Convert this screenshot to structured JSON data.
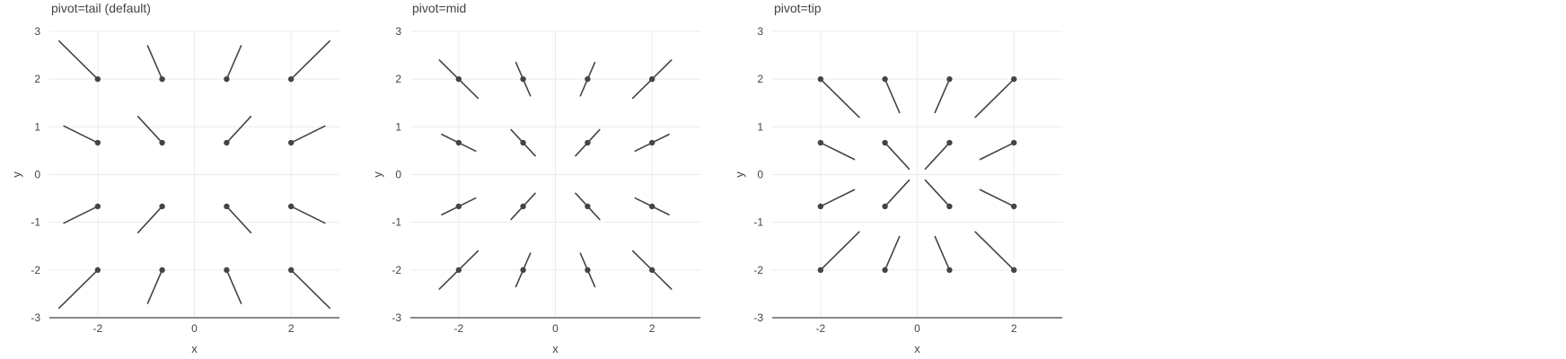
{
  "chart_data": [
    {
      "type": "quiver",
      "title": "pivot=tail (default)",
      "pivot": "tail",
      "xlabel": "x",
      "ylabel": "y",
      "xlim": [
        -3,
        3
      ],
      "ylim": [
        -3,
        3
      ],
      "xticks": [
        "-2",
        "0",
        "2"
      ],
      "yticks": [
        "3",
        "2",
        "1",
        "0",
        "-1",
        "-2",
        "-3"
      ],
      "grid": true,
      "points": [
        {
          "x": -2,
          "y": 2,
          "u": -0.8,
          "v": 0.8
        },
        {
          "x": -0.667,
          "y": 2,
          "u": -0.3,
          "v": 0.7
        },
        {
          "x": 0.667,
          "y": 2,
          "u": 0.3,
          "v": 0.7
        },
        {
          "x": 2,
          "y": 2,
          "u": 0.8,
          "v": 0.8
        },
        {
          "x": -2,
          "y": 0.667,
          "u": -0.7,
          "v": 0.35
        },
        {
          "x": -0.667,
          "y": 0.667,
          "u": -0.5,
          "v": 0.55
        },
        {
          "x": 0.667,
          "y": 0.667,
          "u": 0.5,
          "v": 0.55
        },
        {
          "x": 2,
          "y": 0.667,
          "u": 0.7,
          "v": 0.35
        },
        {
          "x": -2,
          "y": -0.667,
          "u": -0.7,
          "v": -0.35
        },
        {
          "x": -0.667,
          "y": -0.667,
          "u": -0.5,
          "v": -0.55
        },
        {
          "x": 0.667,
          "y": -0.667,
          "u": 0.5,
          "v": -0.55
        },
        {
          "x": 2,
          "y": -0.667,
          "u": 0.7,
          "v": -0.35
        },
        {
          "x": -2,
          "y": -2,
          "u": -0.8,
          "v": -0.8
        },
        {
          "x": -0.667,
          "y": -2,
          "u": -0.3,
          "v": -0.7
        },
        {
          "x": 0.667,
          "y": -2,
          "u": 0.3,
          "v": -0.7
        },
        {
          "x": 2,
          "y": -2,
          "u": 0.8,
          "v": -0.8
        }
      ]
    },
    {
      "type": "quiver",
      "title": "pivot=mid",
      "pivot": "mid",
      "xlabel": "x",
      "ylabel": "y",
      "xlim": [
        -3,
        3
      ],
      "ylim": [
        -3,
        3
      ],
      "xticks": [
        "-2",
        "0",
        "2"
      ],
      "yticks": [
        "3",
        "2",
        "1",
        "0",
        "-1",
        "-2",
        "-3"
      ],
      "grid": true,
      "points": [
        {
          "x": -2,
          "y": 2,
          "u": -0.8,
          "v": 0.8
        },
        {
          "x": -0.667,
          "y": 2,
          "u": -0.3,
          "v": 0.7
        },
        {
          "x": 0.667,
          "y": 2,
          "u": 0.3,
          "v": 0.7
        },
        {
          "x": 2,
          "y": 2,
          "u": 0.8,
          "v": 0.8
        },
        {
          "x": -2,
          "y": 0.667,
          "u": -0.7,
          "v": 0.35
        },
        {
          "x": -0.667,
          "y": 0.667,
          "u": -0.5,
          "v": 0.55
        },
        {
          "x": 0.667,
          "y": 0.667,
          "u": 0.5,
          "v": 0.55
        },
        {
          "x": 2,
          "y": 0.667,
          "u": 0.7,
          "v": 0.35
        },
        {
          "x": -2,
          "y": -0.667,
          "u": -0.7,
          "v": -0.35
        },
        {
          "x": -0.667,
          "y": -0.667,
          "u": -0.5,
          "v": -0.55
        },
        {
          "x": 0.667,
          "y": -0.667,
          "u": 0.5,
          "v": -0.55
        },
        {
          "x": 2,
          "y": -0.667,
          "u": 0.7,
          "v": -0.35
        },
        {
          "x": -2,
          "y": -2,
          "u": -0.8,
          "v": -0.8
        },
        {
          "x": -0.667,
          "y": -2,
          "u": -0.3,
          "v": -0.7
        },
        {
          "x": 0.667,
          "y": -2,
          "u": 0.3,
          "v": -0.7
        },
        {
          "x": 2,
          "y": -2,
          "u": 0.8,
          "v": -0.8
        }
      ]
    },
    {
      "type": "quiver",
      "title": "pivot=tip",
      "pivot": "tip",
      "xlabel": "x",
      "ylabel": "y",
      "xlim": [
        -3,
        3
      ],
      "ylim": [
        -3,
        3
      ],
      "xticks": [
        "-2",
        "0",
        "2"
      ],
      "yticks": [
        "3",
        "2",
        "1",
        "0",
        "-1",
        "-2",
        "-3"
      ],
      "grid": true,
      "points": [
        {
          "x": -2,
          "y": 2,
          "u": -0.8,
          "v": 0.8
        },
        {
          "x": -0.667,
          "y": 2,
          "u": -0.3,
          "v": 0.7
        },
        {
          "x": 0.667,
          "y": 2,
          "u": 0.3,
          "v": 0.7
        },
        {
          "x": 2,
          "y": 2,
          "u": 0.8,
          "v": 0.8
        },
        {
          "x": -2,
          "y": 0.667,
          "u": -0.7,
          "v": 0.35
        },
        {
          "x": -0.667,
          "y": 0.667,
          "u": -0.5,
          "v": 0.55
        },
        {
          "x": 0.667,
          "y": 0.667,
          "u": 0.5,
          "v": 0.55
        },
        {
          "x": 2,
          "y": 0.667,
          "u": 0.7,
          "v": 0.35
        },
        {
          "x": -2,
          "y": -0.667,
          "u": -0.7,
          "v": -0.35
        },
        {
          "x": -0.667,
          "y": -0.667,
          "u": -0.5,
          "v": -0.55
        },
        {
          "x": 0.667,
          "y": -0.667,
          "u": 0.5,
          "v": -0.55
        },
        {
          "x": 2,
          "y": -0.667,
          "u": 0.7,
          "v": -0.35
        },
        {
          "x": -2,
          "y": -2,
          "u": -0.8,
          "v": -0.8
        },
        {
          "x": -0.667,
          "y": -2,
          "u": -0.3,
          "v": -0.7
        },
        {
          "x": 0.667,
          "y": -2,
          "u": 0.3,
          "v": -0.7
        },
        {
          "x": 2,
          "y": -2,
          "u": 0.8,
          "v": -0.8
        }
      ]
    }
  ],
  "colors": {
    "line": "#444444",
    "grid": "#ebebeb",
    "axis": "#444444",
    "text": "#444444",
    "background": "#ffffff"
  }
}
